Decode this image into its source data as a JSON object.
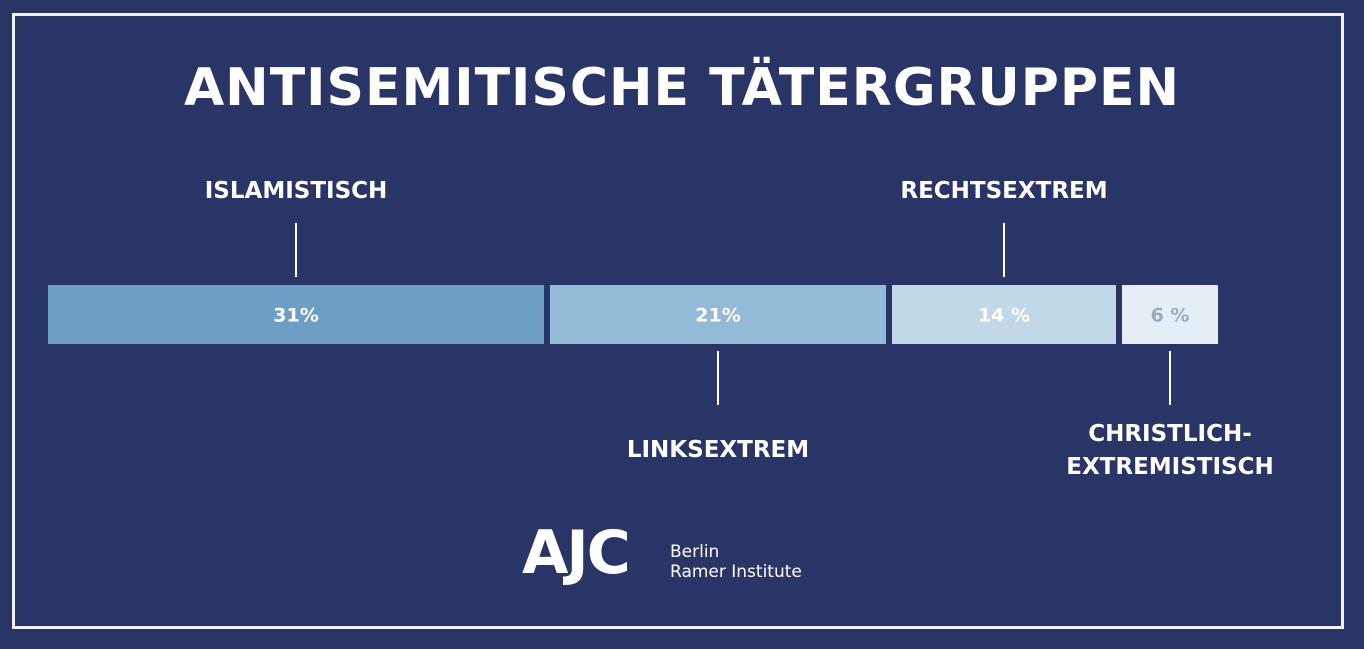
{
  "colors": {
    "background": "#283566",
    "frame": "#f2f3f6",
    "text": "#ffffff",
    "segment_1": "#6d9ec5",
    "segment_2": "#93bad7",
    "segment_3": "#c1d8e9",
    "segment_4": "#e6eef5",
    "segment_label_light": "#ffffff",
    "segment_label_dark": "#9aa9bf"
  },
  "chart_data": {
    "type": "bar",
    "title": "ANTISEMITISCHE TÄTERGRUPPEN",
    "orientation": "horizontal-stacked",
    "categories": [
      "ISLAMISTISCH",
      "LINKSEXTREM",
      "RECHTSEXTREM",
      "CHRISTLICH-EXTREMISTISCH"
    ],
    "category_lines": [
      [
        "ISLAMISTISCH"
      ],
      [
        "LINKSEXTREM"
      ],
      [
        "RECHTSEXTREM"
      ],
      [
        "CHRISTLICH-",
        "EXTREMISTISCH"
      ]
    ],
    "label_positions": [
      "above",
      "below",
      "above",
      "below"
    ],
    "values": [
      31,
      21,
      14,
      6
    ],
    "value_labels": [
      "31%",
      "21%",
      "14 %",
      "6 %"
    ]
  },
  "logo": {
    "mark": "AJC",
    "line1": "Berlin",
    "line2": "Ramer Institute"
  }
}
